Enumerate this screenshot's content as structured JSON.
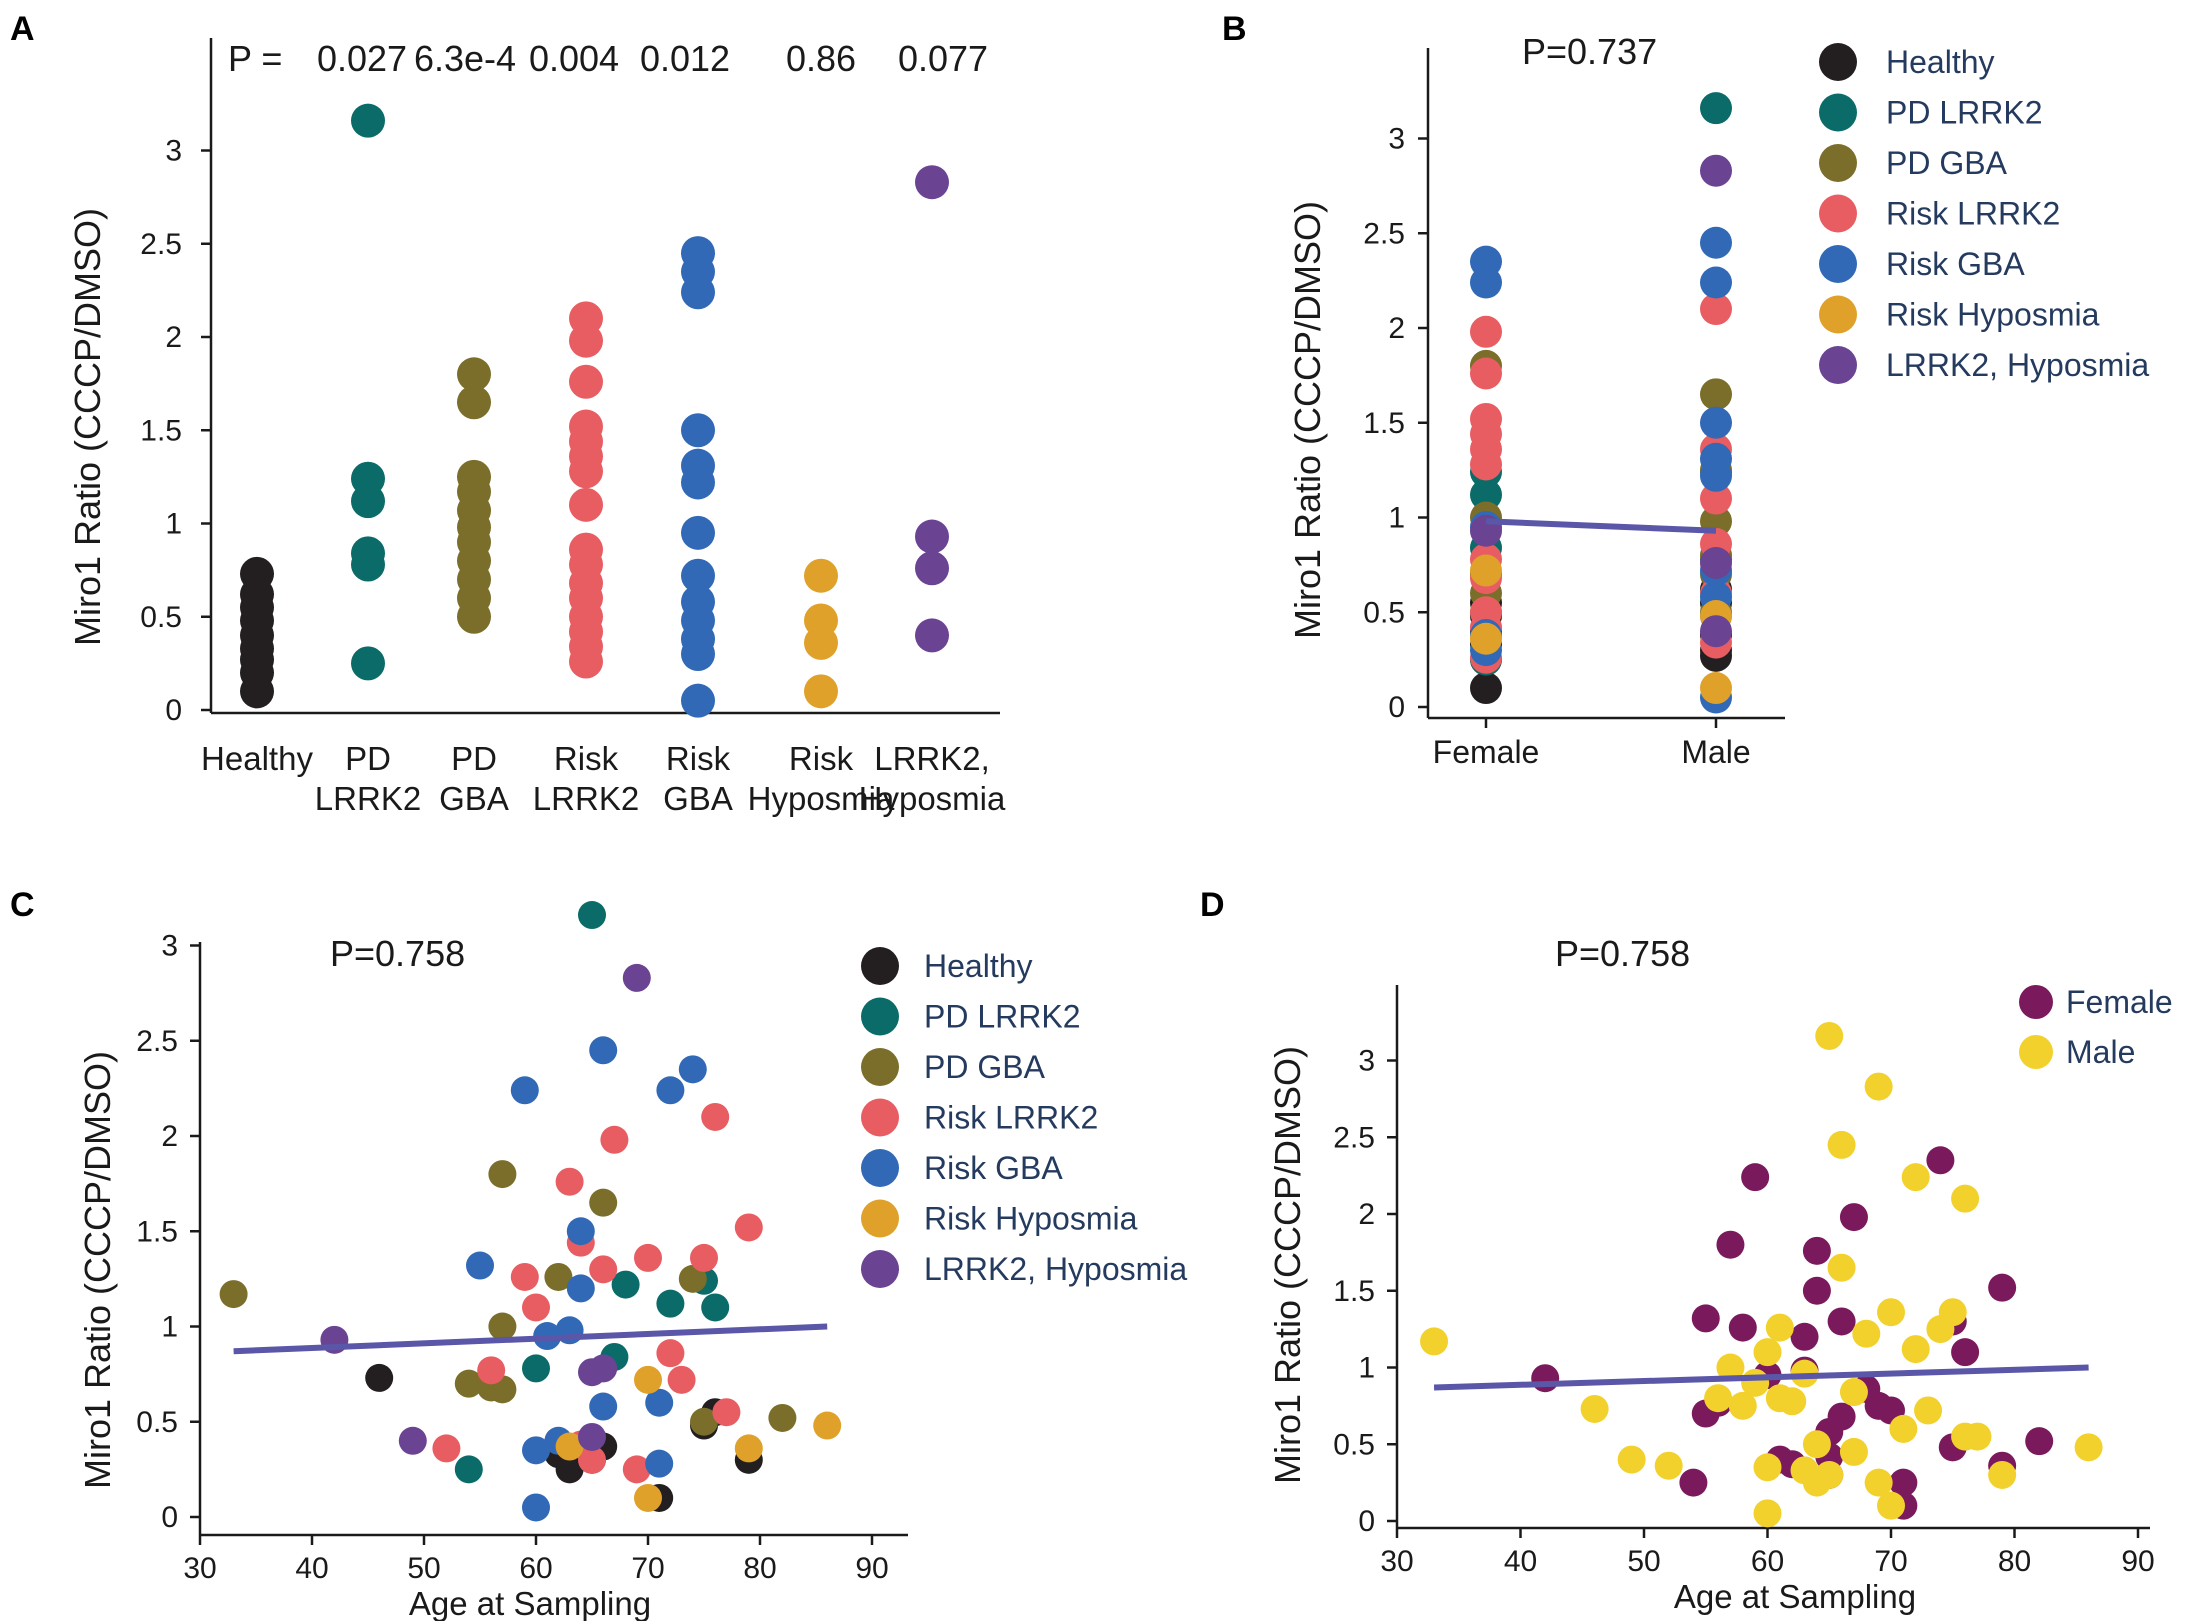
{
  "colors": {
    "Healthy": "#231f20",
    "PD LRRK2": "#0a6b68",
    "PD GBA": "#7a6e2a",
    "Risk LRRK2": "#e85d62",
    "Risk GBA": "#3169b7",
    "Risk Hyposmia": "#dfa12a",
    "LRRK2, Hyposmia": "#6a4393",
    "Female": "#7a1a5c",
    "Male": "#f2d12c",
    "fit": "#5a56a8"
  },
  "chart_data": [
    {
      "panel": "A",
      "type": "scatter",
      "ylabel": "Miro1 Ratio (CCCP/DMSO)",
      "ylim": [
        0,
        3.4
      ],
      "yticks": [
        "0",
        "0.5",
        "1",
        "1.5",
        "2",
        "2.5",
        "3"
      ],
      "pvalue_label": "P =",
      "pvalues": [
        "0.027",
        "6.3e-4",
        "0.004",
        "0.012",
        "0.86",
        "0.077"
      ],
      "categories": [
        {
          "name": "Healthy",
          "label_lines": [
            "Healthy"
          ],
          "values": [
            0.1,
            0.2,
            0.27,
            0.33,
            0.4,
            0.48,
            0.55,
            0.62,
            0.73
          ]
        },
        {
          "name": "PD LRRK2",
          "label_lines": [
            "PD",
            "LRRK2"
          ],
          "values": [
            0.25,
            0.78,
            0.84,
            1.12,
            1.24,
            3.16
          ]
        },
        {
          "name": "PD GBA",
          "label_lines": [
            "PD",
            "GBA"
          ],
          "values": [
            0.5,
            0.6,
            0.7,
            0.8,
            0.9,
            0.98,
            1.07,
            1.17,
            1.25,
            1.65,
            1.8
          ]
        },
        {
          "name": "Risk LRRK2",
          "label_lines": [
            "Risk",
            "LRRK2"
          ],
          "values": [
            0.26,
            0.34,
            0.42,
            0.5,
            0.6,
            0.68,
            0.78,
            0.86,
            1.1,
            1.28,
            1.36,
            1.44,
            1.52,
            1.76,
            1.98,
            2.1
          ]
        },
        {
          "name": "Risk GBA",
          "label_lines": [
            "Risk",
            "GBA"
          ],
          "values": [
            0.05,
            0.3,
            0.38,
            0.48,
            0.58,
            0.72,
            0.95,
            1.22,
            1.31,
            1.5,
            2.24,
            2.35,
            2.45
          ]
        },
        {
          "name": "Risk Hyposmia",
          "label_lines": [
            "Risk",
            "Hyposmia"
          ],
          "values": [
            0.1,
            0.36,
            0.48,
            0.72
          ]
        },
        {
          "name": "LRRK2, Hyposmia",
          "label_lines": [
            "LRRK2,",
            "Hyposmia"
          ],
          "values": [
            0.4,
            0.76,
            0.93,
            2.83
          ]
        }
      ]
    },
    {
      "panel": "B",
      "type": "scatter",
      "ylabel": "Miro1 Ratio (CCCP/DMSO)",
      "ylim": [
        0,
        3.4
      ],
      "yticks": [
        "0",
        "0.5",
        "1",
        "1.5",
        "2",
        "2.5",
        "3"
      ],
      "pvalue": "P=0.737",
      "categories": [
        "Female",
        "Male"
      ],
      "fit_line": {
        "start": 0.98,
        "end": 0.93
      },
      "legend": [
        "Healthy",
        "PD LRRK2",
        "PD GBA",
        "Risk LRRK2",
        "Risk GBA",
        "Risk Hyposmia",
        "LRRK2, Hyposmia"
      ],
      "series": [
        {
          "group": "Healthy",
          "Female": [
            0.1,
            0.25,
            0.33,
            0.4,
            0.48,
            0.55
          ],
          "Male": [
            0.27,
            0.3,
            0.38,
            0.55,
            0.62
          ]
        },
        {
          "group": "PD LRRK2",
          "Female": [
            0.25,
            0.84,
            1.12,
            1.24
          ],
          "Male": [
            0.78,
            1.24,
            3.16
          ]
        },
        {
          "group": "PD GBA",
          "Female": [
            0.5,
            0.6,
            0.7,
            1.0,
            1.8
          ],
          "Male": [
            0.5,
            0.7,
            0.8,
            0.98,
            1.25,
            1.65
          ]
        },
        {
          "group": "Risk LRRK2",
          "Female": [
            0.26,
            0.42,
            0.5,
            0.68,
            0.78,
            1.28,
            1.36,
            1.44,
            1.52,
            1.76,
            1.98
          ],
          "Male": [
            0.34,
            0.6,
            0.86,
            1.1,
            1.36,
            2.1
          ]
        },
        {
          "group": "Risk GBA",
          "Female": [
            0.3,
            0.38,
            0.95,
            2.24,
            2.35
          ],
          "Male": [
            0.05,
            0.48,
            0.58,
            0.72,
            1.22,
            1.31,
            1.5,
            2.24,
            2.45
          ]
        },
        {
          "group": "Risk Hyposmia",
          "Female": [
            0.36,
            0.72
          ],
          "Male": [
            0.1,
            0.48
          ]
        },
        {
          "group": "LRRK2, Hyposmia",
          "Female": [
            0.93
          ],
          "Male": [
            0.4,
            0.76,
            2.83
          ]
        }
      ]
    },
    {
      "panel": "C",
      "type": "scatter",
      "xlabel": "Age at Sampling",
      "ylabel": "Miro1 Ratio (CCCP/DMSO)",
      "xlim": [
        30,
        92
      ],
      "ylim": [
        0,
        3.4
      ],
      "xticks": [
        "30",
        "40",
        "50",
        "60",
        "70",
        "80",
        "90"
      ],
      "yticks": [
        "0",
        "0.5",
        "1",
        "1.5",
        "2",
        "2.5",
        "3"
      ],
      "pvalue": "P=0.758",
      "fit_line": {
        "x": [
          33,
          86
        ],
        "y": [
          0.87,
          1.0
        ]
      },
      "legend": [
        "Healthy",
        "PD LRRK2",
        "PD GBA",
        "Risk LRRK2",
        "Risk GBA",
        "Risk Hyposmia",
        "LRRK2, Hyposmia"
      ],
      "series": [
        {
          "group": "Healthy",
          "points": [
            [
              46,
              0.73
            ],
            [
              63,
              0.25
            ],
            [
              66,
              0.37
            ],
            [
              71,
              0.1
            ],
            [
              75,
              0.48
            ],
            [
              76,
              0.55
            ],
            [
              79,
              0.3
            ],
            [
              62,
              0.33
            ],
            [
              65,
              0.3
            ]
          ]
        },
        {
          "group": "PD LRRK2",
          "points": [
            [
              65,
              3.16
            ],
            [
              54,
              0.25
            ],
            [
              60,
              0.78
            ],
            [
              67,
              0.84
            ],
            [
              72,
              1.12
            ],
            [
              75,
              1.24
            ],
            [
              76,
              1.1
            ],
            [
              68,
              1.22
            ]
          ]
        },
        {
          "group": "PD GBA",
          "points": [
            [
              33,
              1.17
            ],
            [
              54,
              0.7
            ],
            [
              57,
              0.67
            ],
            [
              57,
              1.8
            ],
            [
              66,
              1.65
            ],
            [
              74,
              1.25
            ],
            [
              82,
              0.52
            ],
            [
              75,
              0.5
            ],
            [
              56,
              0.68
            ],
            [
              57,
              1.0
            ],
            [
              62,
              1.26
            ]
          ]
        },
        {
          "group": "Risk LRRK2",
          "points": [
            [
              52,
              0.36
            ],
            [
              56,
              0.77
            ],
            [
              59,
              1.26
            ],
            [
              60,
              1.1
            ],
            [
              63,
              1.76
            ],
            [
              65,
              0.3
            ],
            [
              64,
              0.38
            ],
            [
              66,
              1.3
            ],
            [
              67,
              1.98
            ],
            [
              70,
              1.36
            ],
            [
              72,
              0.86
            ],
            [
              73,
              0.72
            ],
            [
              75,
              1.36
            ],
            [
              76,
              2.1
            ],
            [
              77,
              0.55
            ],
            [
              79,
              1.52
            ],
            [
              69,
              0.25
            ],
            [
              64,
              1.44
            ]
          ]
        },
        {
          "group": "Risk GBA",
          "points": [
            [
              55,
              1.32
            ],
            [
              59,
              2.24
            ],
            [
              60,
              0.05
            ],
            [
              61,
              0.95
            ],
            [
              62,
              0.4
            ],
            [
              63,
              0.98
            ],
            [
              64,
              1.2
            ],
            [
              64,
              1.5
            ],
            [
              66,
              2.45
            ],
            [
              66,
              0.58
            ],
            [
              71,
              0.6
            ],
            [
              72,
              2.24
            ],
            [
              74,
              2.35
            ],
            [
              71,
              0.28
            ],
            [
              60,
              0.35
            ]
          ]
        },
        {
          "group": "Risk Hyposmia",
          "points": [
            [
              63,
              0.37
            ],
            [
              70,
              0.72
            ],
            [
              70,
              0.1
            ],
            [
              79,
              0.36
            ],
            [
              86,
              0.48
            ]
          ]
        },
        {
          "group": "LRRK2, Hyposmia",
          "points": [
            [
              42,
              0.93
            ],
            [
              49,
              0.4
            ],
            [
              65,
              0.76
            ],
            [
              69,
              2.83
            ],
            [
              66,
              0.78
            ],
            [
              65,
              0.42
            ]
          ]
        }
      ]
    },
    {
      "panel": "D",
      "type": "scatter",
      "xlabel": "Age at Sampling",
      "ylabel": "Miro1 Ratio (CCCP/DMSO)",
      "xlim": [
        30,
        92
      ],
      "ylim": [
        0,
        3.4
      ],
      "xticks": [
        "30",
        "40",
        "50",
        "60",
        "70",
        "80",
        "90"
      ],
      "yticks": [
        "0",
        "0.5",
        "1",
        "1.5",
        "2",
        "2.5",
        "3"
      ],
      "pvalue": "P=0.758",
      "fit_line": {
        "x": [
          33,
          86
        ],
        "y": [
          0.87,
          1.0
        ]
      },
      "legend": [
        "Female",
        "Male"
      ],
      "series": [
        {
          "group": "Female",
          "points": [
            [
              42,
              0.93
            ],
            [
              54,
              0.25
            ],
            [
              55,
              0.7
            ],
            [
              55,
              1.32
            ],
            [
              56,
              0.77
            ],
            [
              57,
              1.8
            ],
            [
              58,
              1.26
            ],
            [
              59,
              2.24
            ],
            [
              60,
              0.95
            ],
            [
              61,
              0.4
            ],
            [
              62,
              0.37
            ],
            [
              63,
              1.2
            ],
            [
              64,
              1.5
            ],
            [
              64,
              1.76
            ],
            [
              65,
              0.3
            ],
            [
              65,
              0.58
            ],
            [
              66,
              0.68
            ],
            [
              66,
              1.3
            ],
            [
              67,
              1.98
            ],
            [
              68,
              0.86
            ],
            [
              69,
              0.75
            ],
            [
              70,
              0.72
            ],
            [
              71,
              0.25
            ],
            [
              71,
              0.1
            ],
            [
              74,
              2.35
            ],
            [
              75,
              0.48
            ],
            [
              75,
              1.3
            ],
            [
              76,
              1.1
            ],
            [
              79,
              1.52
            ],
            [
              79,
              0.36
            ],
            [
              82,
              0.52
            ],
            [
              65,
              0.42
            ],
            [
              63,
              0.98
            ]
          ]
        },
        {
          "group": "Male",
          "points": [
            [
              33,
              1.17
            ],
            [
              46,
              0.73
            ],
            [
              49,
              0.4
            ],
            [
              52,
              0.36
            ],
            [
              56,
              0.8
            ],
            [
              57,
              1.0
            ],
            [
              59,
              0.9
            ],
            [
              60,
              0.05
            ],
            [
              60,
              0.35
            ],
            [
              60,
              1.1
            ],
            [
              61,
              1.26
            ],
            [
              62,
              0.78
            ],
            [
              63,
              0.33
            ],
            [
              63,
              0.96
            ],
            [
              64,
              0.25
            ],
            [
              65,
              3.16
            ],
            [
              65,
              0.3
            ],
            [
              66,
              2.45
            ],
            [
              66,
              1.65
            ],
            [
              67,
              0.84
            ],
            [
              68,
              1.22
            ],
            [
              69,
              2.83
            ],
            [
              69,
              0.25
            ],
            [
              70,
              1.36
            ],
            [
              70,
              0.1
            ],
            [
              71,
              0.6
            ],
            [
              72,
              1.12
            ],
            [
              72,
              2.24
            ],
            [
              73,
              0.72
            ],
            [
              74,
              1.25
            ],
            [
              75,
              1.36
            ],
            [
              76,
              2.1
            ],
            [
              76,
              0.55
            ],
            [
              77,
              0.55
            ],
            [
              79,
              0.3
            ],
            [
              86,
              0.48
            ],
            [
              61,
              0.8
            ],
            [
              64,
              0.5
            ],
            [
              58,
              0.75
            ],
            [
              67,
              0.45
            ]
          ]
        }
      ]
    }
  ]
}
